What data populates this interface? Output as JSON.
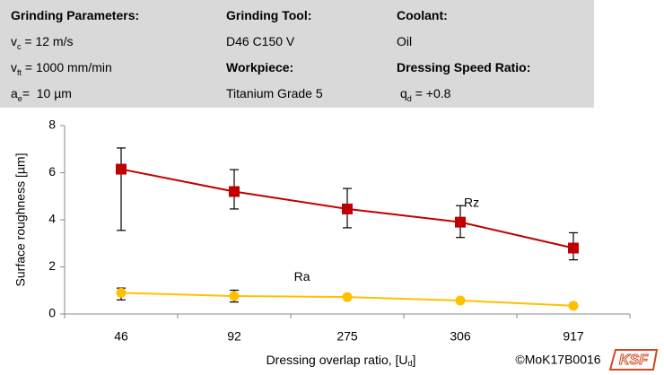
{
  "header": {
    "col1": {
      "title": "Grinding Parameters:",
      "rows": [
        {
          "base": "v",
          "sub": "c",
          "rest": " = 12 m/s"
        },
        {
          "base": "v",
          "sub": "ft",
          "rest": " = 1000 mm/min"
        },
        {
          "base": "a",
          "sub": "e",
          "rest": "=  10 µm"
        }
      ]
    },
    "col2": {
      "title": "Grinding Tool:",
      "tool": "D46 C150 V",
      "title2": "Workpiece:",
      "workpiece": "Titanium Grade 5"
    },
    "col3": {
      "title": "Coolant:",
      "coolant": "Oil",
      "title2": "Dressing Speed Ratio:",
      "ratio": {
        "base": "q",
        "sub": "d",
        "rest": " = +0.8"
      }
    }
  },
  "chart_data": {
    "type": "line",
    "ylabel": "Surface roughness [µm]",
    "xlabel": {
      "base": "Dressing overlap ratio, [U",
      "sub": "d",
      "rest": "]"
    },
    "categories": [
      "46",
      "92",
      "275",
      "306",
      "917"
    ],
    "ylim": [
      0,
      8
    ],
    "yticks": [
      0,
      2,
      4,
      6,
      8
    ],
    "series": [
      {
        "name": "Rz",
        "color": "#c00000",
        "marker": "square",
        "values": [
          6.15,
          5.2,
          4.46,
          3.9,
          2.8
        ],
        "err_plus": [
          0.9,
          0.93,
          0.87,
          0.7,
          0.65
        ],
        "err_minus": [
          2.6,
          0.74,
          0.8,
          0.65,
          0.5
        ]
      },
      {
        "name": "Ra",
        "color": "#ffc000",
        "marker": "circle",
        "values": [
          0.9,
          0.76,
          0.72,
          0.57,
          0.35
        ],
        "err_plus": [
          0.2,
          0.25,
          null,
          null,
          null
        ],
        "err_minus": [
          0.3,
          0.25,
          null,
          null,
          null
        ]
      }
    ],
    "annotations": [
      {
        "text": "Rz",
        "x": 3.6,
        "y": 4.7
      },
      {
        "text": "Ra",
        "x": 2.1,
        "y": 1.55
      }
    ],
    "footer": "©MoK17B0016",
    "logo": "KSF"
  }
}
